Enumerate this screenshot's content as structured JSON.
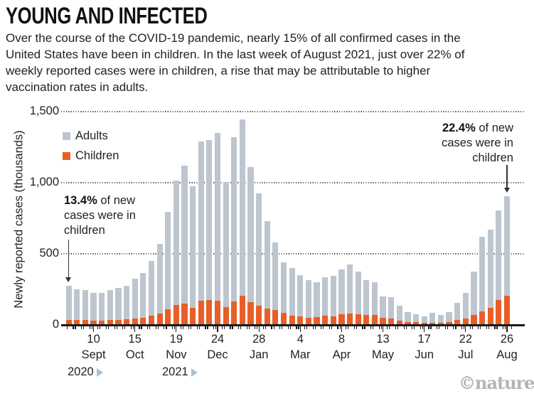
{
  "header": {
    "title": "YOUNG AND INFECTED",
    "description": "Over the course of the COVID-19 pandemic, nearly 15% of all confirmed cases in the United States have been in children. In the last week of August 2021, just over 22% of weekly reported cases were in children, a rise that may be attributable to higher vaccination rates in adults."
  },
  "watermark": "©nature",
  "chart_data": {
    "type": "bar",
    "stacked": true,
    "ylabel": "Newly reported cases (thousands)",
    "ylim": [
      0,
      1500
    ],
    "yticks": [
      0,
      500,
      1000,
      1500
    ],
    "ytick_labels": [
      "0",
      "500",
      "1,000",
      "1,500"
    ],
    "grid": "horizontal dotted",
    "legend_position": "upper-left inside plot",
    "bars_are": "weekly totals, Aug 2020 through 26 Aug 2021",
    "colors": {
      "adults": "#bdc6cf",
      "children": "#e85e28",
      "axis": "#1a1a1a",
      "year_marker": "#a9c2d3"
    },
    "legend": [
      {
        "label": "Adults",
        "color": "#bdc6cf"
      },
      {
        "label": "Children",
        "color": "#e85e28"
      }
    ],
    "x_ticks": [
      {
        "bar_index": 3,
        "day": "10",
        "month": "Sept"
      },
      {
        "bar_index": 8,
        "day": "15",
        "month": "Oct"
      },
      {
        "bar_index": 13,
        "day": "19",
        "month": "Nov"
      },
      {
        "bar_index": 18,
        "day": "24",
        "month": "Dec"
      },
      {
        "bar_index": 23,
        "day": "28",
        "month": "Jan"
      },
      {
        "bar_index": 28,
        "day": "4",
        "month": "Mar"
      },
      {
        "bar_index": 33,
        "day": "8",
        "month": "Apr"
      },
      {
        "bar_index": 38,
        "day": "13",
        "month": "May"
      },
      {
        "bar_index": 43,
        "day": "17",
        "month": "Jun"
      },
      {
        "bar_index": 48,
        "day": "22",
        "month": "Jul"
      },
      {
        "bar_index": 53,
        "day": "26",
        "month": "Aug"
      }
    ],
    "year_markers": [
      {
        "label": "2020"
      },
      {
        "label": "2021"
      }
    ],
    "series": [
      {
        "name": "Children",
        "color": "#e85e28",
        "values": [
          37,
          34,
          33,
          30,
          31,
          33,
          36,
          38,
          45,
          52,
          64,
          82,
          109,
          139,
          148,
          119,
          171,
          175,
          169,
          123,
          164,
          206,
          159,
          134,
          114,
          104,
          84,
          65,
          60,
          50,
          53,
          64,
          61,
          73,
          81,
          76,
          68,
          72,
          52,
          45,
          28,
          20,
          18,
          14,
          16,
          15,
          22,
          35,
          45,
          70,
          93,
          120,
          176,
          203
        ]
      },
      {
        "name": "Adults",
        "color": "#bdc6cf",
        "values": [
          238,
          216,
          210,
          194,
          196,
          210,
          224,
          235,
          280,
          312,
          387,
          488,
          688,
          877,
          971,
          855,
          1117,
          1123,
          1182,
          883,
          1157,
          1241,
          951,
          789,
          615,
          476,
          358,
          337,
          290,
          263,
          245,
          270,
          282,
          316,
          344,
          301,
          246,
          226,
          146,
          148,
          107,
          71,
          55,
          44,
          68,
          55,
          69,
          120,
          179,
          303,
          528,
          551,
          627,
          703
        ]
      }
    ],
    "annotations": [
      {
        "bold": "13.4%",
        "line1_rest": " of new",
        "line2": "cases were in",
        "line3": "children",
        "points_to_bar": 0
      },
      {
        "bold": "22.4%",
        "line1_rest": " of new",
        "line2": "cases were in",
        "line3": "children",
        "points_to_bar": 53
      }
    ]
  }
}
